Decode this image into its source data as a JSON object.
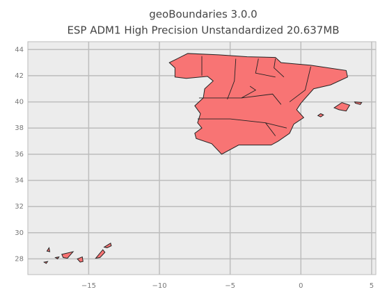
{
  "chart_data": {
    "type": "map",
    "title": "geoBoundaries 3.0.0",
    "subtitle": "ESP ADM1 High Precision Unstandardized 20.637MB",
    "xlim": [
      -19.3,
      5.3
    ],
    "ylim": [
      26.8,
      44.6
    ],
    "xticks": [
      {
        "value": -15,
        "label": "−15"
      },
      {
        "value": -10,
        "label": "−10"
      },
      {
        "value": -5,
        "label": "−5"
      },
      0,
      5
    ],
    "yticks": [
      28,
      30,
      32,
      34,
      36,
      38,
      40,
      42,
      44
    ],
    "grid": true,
    "color": "#f87474"
  }
}
